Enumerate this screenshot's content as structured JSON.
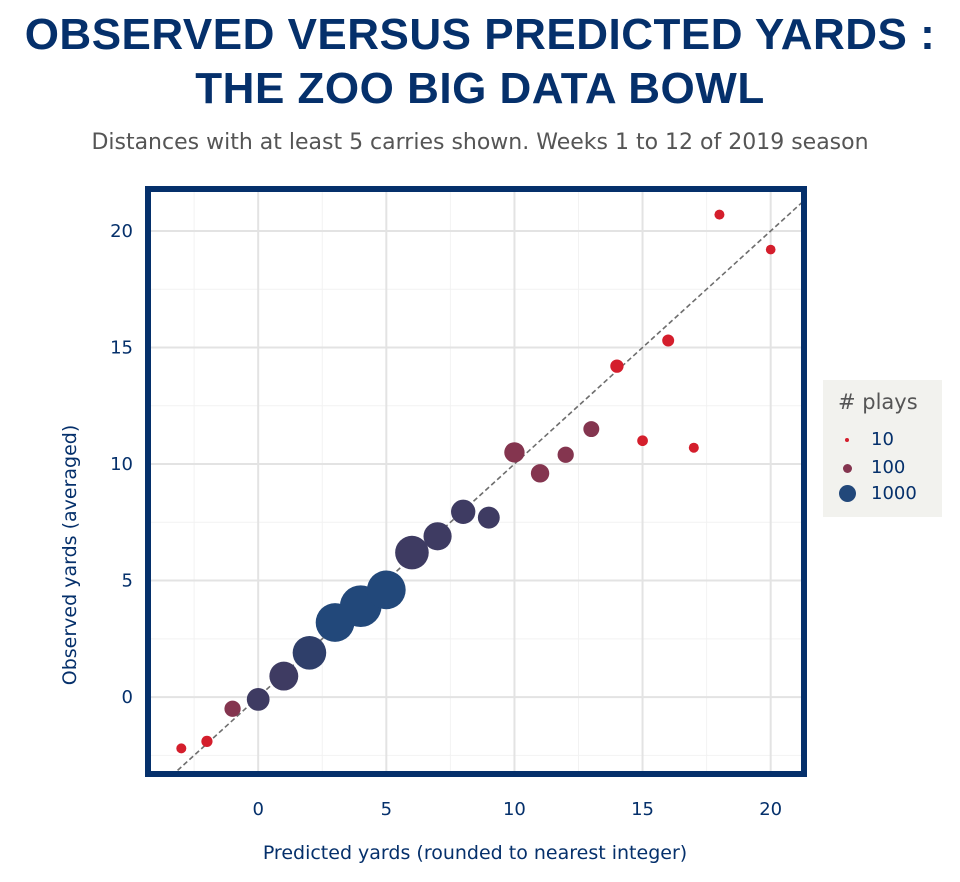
{
  "title_line1": "OBSERVED VERSUS PREDICTED YARDS :",
  "title_line2": "THE ZOO BIG DATA BOWL",
  "subtitle": "Distances with at least 5 carries shown. Weeks 1 to 12 of 2019 season",
  "legend": {
    "title": "# plays",
    "items": [
      {
        "label": "10",
        "color": "#d41e2c"
      },
      {
        "label": "100",
        "color": "#84354f"
      },
      {
        "label": "1000",
        "color": "#22487a"
      }
    ]
  },
  "chart_data": {
    "type": "scatter",
    "xlabel": "Predicted yards (rounded to nearest integer)",
    "ylabel": "Observed yards (averaged)",
    "xlim": [
      -4.3,
      21.3
    ],
    "ylim": [
      -3.3,
      21.8
    ],
    "xticks": [
      0,
      5,
      10,
      15,
      20
    ],
    "yticks": [
      0,
      5,
      10,
      15,
      20
    ],
    "grid": true,
    "reference_line": "y = x",
    "points": [
      {
        "x": -3,
        "y": -2.2,
        "plays": 8,
        "color": "#d41e2c"
      },
      {
        "x": -2,
        "y": -1.9,
        "plays": 12,
        "color": "#d41e2c"
      },
      {
        "x": -1,
        "y": -0.5,
        "plays": 45,
        "color": "#84354f"
      },
      {
        "x": 0,
        "y": -0.1,
        "plays": 150,
        "color": "#3e3b62"
      },
      {
        "x": 1,
        "y": 0.9,
        "plays": 350,
        "color": "#3e3b62"
      },
      {
        "x": 2,
        "y": 1.9,
        "plays": 600,
        "color": "#2f3f6a"
      },
      {
        "x": 3,
        "y": 3.2,
        "plays": 1000,
        "color": "#22487a"
      },
      {
        "x": 4,
        "y": 3.9,
        "plays": 1300,
        "color": "#22487a"
      },
      {
        "x": 5,
        "y": 4.6,
        "plays": 1000,
        "color": "#22487a"
      },
      {
        "x": 6,
        "y": 6.2,
        "plays": 600,
        "color": "#3e3b62"
      },
      {
        "x": 7,
        "y": 6.9,
        "plays": 320,
        "color": "#3e3b62"
      },
      {
        "x": 8,
        "y": 7.95,
        "plays": 190,
        "color": "#3e3b62"
      },
      {
        "x": 9,
        "y": 7.7,
        "plays": 130,
        "color": "#3e3b62"
      },
      {
        "x": 10,
        "y": 10.5,
        "plays": 100,
        "color": "#84354f"
      },
      {
        "x": 11,
        "y": 9.6,
        "plays": 70,
        "color": "#84354f"
      },
      {
        "x": 12,
        "y": 10.4,
        "plays": 45,
        "color": "#84354f"
      },
      {
        "x": 13,
        "y": 11.5,
        "plays": 42,
        "color": "#84354f"
      },
      {
        "x": 14,
        "y": 14.2,
        "plays": 22,
        "color": "#d41e2c"
      },
      {
        "x": 15,
        "y": 11.0,
        "plays": 10,
        "color": "#d41e2c"
      },
      {
        "x": 16,
        "y": 15.3,
        "plays": 15,
        "color": "#d41e2c"
      },
      {
        "x": 17,
        "y": 10.7,
        "plays": 8,
        "color": "#d41e2c"
      },
      {
        "x": 18,
        "y": 20.7,
        "plays": 8,
        "color": "#d41e2c"
      },
      {
        "x": 20,
        "y": 19.2,
        "plays": 7,
        "color": "#d41e2c"
      }
    ]
  }
}
